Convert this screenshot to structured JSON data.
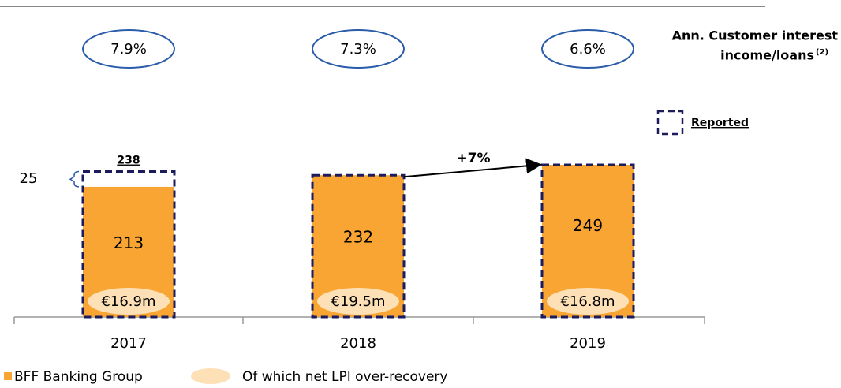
{
  "chart_data": {
    "type": "bar",
    "categories": [
      "2017",
      "2018",
      "2019"
    ],
    "series": [
      {
        "name": "BFF Banking Group",
        "color": "#f9a533",
        "values": [
          213,
          232,
          249
        ]
      }
    ],
    "reported": {
      "name": "Reported",
      "color": "#1c1c5c",
      "values": [
        238,
        null,
        null
      ]
    },
    "adjustment": {
      "values": [
        25,
        null,
        null
      ]
    },
    "lpi": {
      "name": "Of which net LPI over-recovery",
      "color": "#fde0b6",
      "values": [
        16.9,
        19.5,
        16.8
      ],
      "value_labels": [
        "€16.9m",
        "€19.5m",
        "€16.8m"
      ]
    },
    "ratio": {
      "label_lines": [
        "Ann. Customer interest",
        "income/loans"
      ],
      "note": "(2)",
      "values": [
        7.9,
        7.3,
        6.6
      ],
      "value_labels": [
        "7.9%",
        "7.3%",
        "6.6%"
      ]
    },
    "annotation": "+7%"
  }
}
